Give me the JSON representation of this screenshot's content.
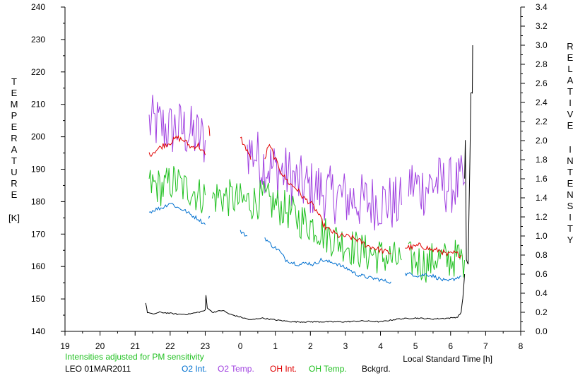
{
  "chart_data": {
    "type": "line",
    "left_axis": {
      "label_letters": [
        "T",
        "E",
        "M",
        "P",
        "E",
        "R",
        "A",
        "T",
        "U",
        "R",
        "E"
      ],
      "unit": "[K]",
      "ylim": [
        140,
        240
      ],
      "ticks": [
        "140",
        "150",
        "160",
        "170",
        "180",
        "190",
        "200",
        "210",
        "220",
        "230",
        "240"
      ]
    },
    "right_axis": {
      "label_word1": [
        "R",
        "E",
        "L",
        "A",
        "T",
        "I",
        "V",
        "E"
      ],
      "label_word2": [
        "I",
        "N",
        "T",
        "E",
        "N",
        "S",
        "I",
        "T",
        "Y"
      ],
      "ylim": [
        0.0,
        3.4
      ],
      "ticks": [
        "0.0",
        "0.2",
        "0.4",
        "0.6",
        "0.8",
        "1.0",
        "1.2",
        "1.4",
        "1.6",
        "1.8",
        "2.0",
        "2.2",
        "2.4",
        "2.6",
        "2.8",
        "3.0",
        "3.2",
        "3.4"
      ]
    },
    "x_axis": {
      "label": "Local Standard Time [h]",
      "ticks": [
        "19",
        "20",
        "21",
        "22",
        "23",
        "0",
        "1",
        "2",
        "3",
        "4",
        "5",
        "6",
        "7",
        "8"
      ]
    },
    "note": "Intensities adjusted for PM sensitivity",
    "station_date": "LEO 01MAR2011",
    "legend": [
      {
        "label": "O2 Int.",
        "color": "#0070d0"
      },
      {
        "label": "O2 Temp.",
        "color": "#a040e0"
      },
      {
        "label": "OH Int.",
        "color": "#e00000"
      },
      {
        "label": "OH Temp.",
        "color": "#20c020"
      },
      {
        "label": "Bckgrd.",
        "color": "#000000"
      }
    ],
    "series": [
      {
        "name": "O2 Temp.",
        "color": "#a040e0",
        "axis": "left",
        "noise": 9,
        "segments": [
          [
            [
              21.4,
              204
            ],
            [
              21.6,
              204
            ],
            [
              21.8,
              203
            ],
            [
              22.0,
              202
            ],
            [
              22.2,
              203
            ],
            [
              22.4,
              202
            ],
            [
              22.6,
              201
            ],
            [
              22.8,
              200
            ],
            [
              23.0,
              199
            ]
          ],
          [
            [
              24.2,
              196
            ],
            [
              24.4,
              195
            ],
            [
              24.6,
              192
            ],
            [
              24.8,
              191
            ],
            [
              25.0,
              190
            ],
            [
              25.2,
              189
            ],
            [
              25.4,
              188
            ],
            [
              25.6,
              186
            ],
            [
              25.8,
              185
            ],
            [
              26.0,
              184
            ],
            [
              26.2,
              184
            ],
            [
              26.4,
              183
            ],
            [
              26.6,
              182
            ],
            [
              26.8,
              182
            ],
            [
              27.0,
              181
            ],
            [
              27.2,
              181
            ],
            [
              27.4,
              180
            ],
            [
              27.6,
              180
            ],
            [
              27.8,
              180
            ],
            [
              28.0,
              180
            ],
            [
              28.2,
              180
            ],
            [
              28.4,
              179
            ],
            [
              28.6,
              179
            ]
          ],
          [
            [
              28.8,
              186
            ],
            [
              29.0,
              185
            ],
            [
              29.2,
              184
            ],
            [
              29.4,
              185
            ],
            [
              29.6,
              186
            ],
            [
              29.8,
              185
            ],
            [
              30.0,
              185
            ],
            [
              30.2,
              185
            ],
            [
              30.4,
              186
            ]
          ]
        ]
      },
      {
        "name": "OH Temp.",
        "color": "#20c020",
        "axis": "left",
        "noise": 6,
        "segments": [
          [
            [
              21.4,
              185
            ],
            [
              21.6,
              185
            ],
            [
              21.8,
              184
            ],
            [
              22.0,
              186
            ],
            [
              22.2,
              186
            ],
            [
              22.4,
              184
            ],
            [
              22.6,
              184
            ],
            [
              22.8,
              182
            ],
            [
              23.0,
              182
            ]
          ],
          [
            [
              23.2,
              181
            ],
            [
              23.4,
              182
            ],
            [
              23.6,
              181
            ],
            [
              23.8,
              181
            ],
            [
              24.0,
              180
            ],
            [
              24.2,
              180
            ],
            [
              24.4,
              180
            ],
            [
              24.6,
              181
            ],
            [
              24.8,
              180
            ],
            [
              25.0,
              179
            ],
            [
              25.2,
              178
            ],
            [
              25.4,
              177
            ],
            [
              25.6,
              175
            ],
            [
              25.8,
              174
            ],
            [
              26.0,
              173
            ],
            [
              26.2,
              172
            ],
            [
              26.4,
              170
            ],
            [
              26.6,
              169
            ],
            [
              26.8,
              168
            ],
            [
              27.0,
              167
            ],
            [
              27.2,
              166
            ],
            [
              27.4,
              165
            ],
            [
              27.6,
              164
            ],
            [
              27.8,
              164
            ],
            [
              28.0,
              163
            ],
            [
              28.2,
              163
            ],
            [
              28.4,
              162
            ],
            [
              28.6,
              162
            ]
          ],
          [
            [
              28.8,
              162
            ],
            [
              29.0,
              162
            ],
            [
              29.2,
              161
            ],
            [
              29.4,
              161
            ],
            [
              29.6,
              163
            ],
            [
              29.8,
              162
            ],
            [
              30.0,
              162
            ],
            [
              30.2,
              163
            ],
            [
              30.4,
              162
            ]
          ]
        ]
      },
      {
        "name": "OH Int.",
        "color": "#e00000",
        "axis": "right",
        "noise": 0.03,
        "segments": [
          [
            [
              21.4,
              1.85
            ],
            [
              21.6,
              1.9
            ],
            [
              21.8,
              1.95
            ],
            [
              22.0,
              1.98
            ],
            [
              22.2,
              2.03
            ],
            [
              22.4,
              2.0
            ],
            [
              22.6,
              1.93
            ],
            [
              22.8,
              1.95
            ],
            [
              23.0,
              1.85
            ]
          ],
          [
            [
              23.1,
              2.15
            ],
            [
              23.13,
              2.05
            ]
          ],
          [
            [
              24.0,
              2.05
            ],
            [
              24.1,
              1.95
            ],
            [
              24.2,
              1.9
            ],
            [
              24.3,
              1.8
            ]
          ],
          [
            [
              24.7,
              1.8
            ],
            [
              24.8,
              1.95
            ],
            [
              24.9,
              1.9
            ],
            [
              25.0,
              1.8
            ],
            [
              25.2,
              1.65
            ],
            [
              25.4,
              1.55
            ],
            [
              25.6,
              1.5
            ],
            [
              25.8,
              1.4
            ],
            [
              26.0,
              1.35
            ],
            [
              26.2,
              1.25
            ],
            [
              26.4,
              1.1
            ],
            [
              26.6,
              1.05
            ],
            [
              26.8,
              1.0
            ],
            [
              27.0,
              1.0
            ],
            [
              27.2,
              0.98
            ],
            [
              27.4,
              0.95
            ],
            [
              27.6,
              0.9
            ],
            [
              27.8,
              0.88
            ],
            [
              28.0,
              0.85
            ],
            [
              28.2,
              0.83
            ],
            [
              28.3,
              0.82
            ]
          ],
          [
            [
              28.7,
              0.88
            ],
            [
              28.9,
              0.88
            ],
            [
              29.1,
              0.9
            ],
            [
              29.3,
              0.88
            ],
            [
              29.5,
              0.85
            ],
            [
              29.7,
              0.85
            ],
            [
              29.9,
              0.8
            ],
            [
              30.1,
              0.82
            ],
            [
              30.3,
              0.8
            ]
          ]
        ]
      },
      {
        "name": "O2 Int.",
        "color": "#0070d0",
        "axis": "right",
        "noise": 0.02,
        "segments": [
          [
            [
              21.4,
              1.25
            ],
            [
              21.6,
              1.28
            ],
            [
              21.8,
              1.3
            ],
            [
              22.0,
              1.35
            ],
            [
              22.2,
              1.3
            ],
            [
              22.4,
              1.27
            ],
            [
              22.6,
              1.22
            ],
            [
              22.8,
              1.18
            ],
            [
              23.0,
              1.12
            ]
          ],
          [
            [
              23.1,
              1.2
            ],
            [
              23.13,
              1.2
            ]
          ],
          [
            [
              24.0,
              1.05
            ],
            [
              24.1,
              1.02
            ],
            [
              24.2,
              1.0
            ]
          ],
          [
            [
              24.7,
              0.98
            ],
            [
              24.9,
              0.9
            ],
            [
              25.1,
              0.85
            ],
            [
              25.3,
              0.75
            ],
            [
              25.5,
              0.72
            ],
            [
              25.7,
              0.7
            ],
            [
              25.9,
              0.72
            ],
            [
              26.1,
              0.7
            ],
            [
              26.3,
              0.75
            ],
            [
              26.5,
              0.73
            ],
            [
              26.7,
              0.72
            ],
            [
              26.9,
              0.68
            ],
            [
              27.1,
              0.65
            ],
            [
              27.3,
              0.6
            ],
            [
              27.5,
              0.58
            ],
            [
              27.7,
              0.56
            ],
            [
              27.9,
              0.55
            ],
            [
              28.1,
              0.53
            ],
            [
              28.3,
              0.52
            ]
          ],
          [
            [
              28.7,
              0.6
            ],
            [
              28.9,
              0.6
            ],
            [
              29.1,
              0.58
            ],
            [
              29.3,
              0.6
            ],
            [
              29.5,
              0.58
            ],
            [
              29.7,
              0.55
            ],
            [
              29.9,
              0.52
            ],
            [
              30.1,
              0.55
            ],
            [
              30.3,
              0.58
            ]
          ]
        ]
      },
      {
        "name": "Bckgrd.",
        "color": "#000000",
        "axis": "right",
        "noise": 0.006,
        "segments": [
          [
            [
              21.3,
              0.3
            ],
            [
              21.35,
              0.2
            ],
            [
              21.5,
              0.18
            ],
            [
              21.7,
              0.2
            ],
            [
              22.0,
              0.19
            ],
            [
              22.2,
              0.18
            ],
            [
              22.5,
              0.18
            ],
            [
              22.8,
              0.2
            ],
            [
              23.0,
              0.22
            ],
            [
              23.02,
              0.38
            ],
            [
              23.06,
              0.25
            ],
            [
              23.2,
              0.2
            ],
            [
              23.5,
              0.22
            ],
            [
              23.7,
              0.18
            ],
            [
              24.0,
              0.15
            ],
            [
              24.3,
              0.12
            ],
            [
              24.6,
              0.14
            ],
            [
              25.0,
              0.12
            ],
            [
              25.5,
              0.1
            ],
            [
              26.0,
              0.1
            ],
            [
              26.5,
              0.1
            ],
            [
              27.0,
              0.1
            ],
            [
              27.5,
              0.11
            ],
            [
              28.0,
              0.1
            ],
            [
              28.5,
              0.13
            ],
            [
              29.0,
              0.14
            ],
            [
              29.5,
              0.13
            ],
            [
              30.0,
              0.14
            ],
            [
              30.2,
              0.15
            ],
            [
              30.3,
              0.2
            ],
            [
              30.35,
              0.35
            ],
            [
              30.4,
              0.6
            ]
          ],
          [
            [
              30.4,
              1.6
            ],
            [
              30.42,
              2.0
            ],
            [
              30.45,
              0.75
            ],
            [
              30.5,
              0.7
            ],
            [
              30.55,
              1.8
            ],
            [
              30.58,
              2.5
            ],
            [
              30.62,
              2.5
            ],
            [
              30.63,
              3.0
            ]
          ]
        ]
      }
    ]
  }
}
